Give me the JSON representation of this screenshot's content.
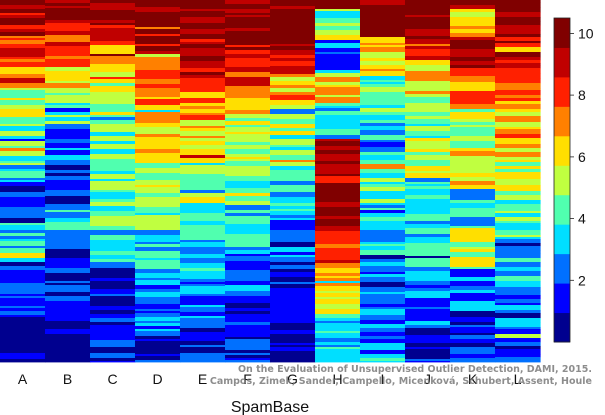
{
  "chart_data": {
    "type": "heatmap",
    "title": "",
    "xlabel": "SpamBase",
    "ylabel": "",
    "categories": [
      "A",
      "B",
      "C",
      "D",
      "E",
      "F",
      "G",
      "H",
      "I",
      "J",
      "K",
      "L"
    ],
    "colorbar": {
      "range": [
        0,
        10.5
      ],
      "ticks": [
        2,
        4,
        6,
        8,
        10
      ],
      "tick_labels": [
        "2",
        "4",
        "6",
        "8",
        "10"
      ],
      "colors": [
        "#00008f",
        "#0000ff",
        "#0070ff",
        "#00dfff",
        "#50ffaf",
        "#c0ff40",
        "#ffdf00",
        "#ff8000",
        "#ff2000",
        "#c00000",
        "#800000"
      ],
      "position": "right"
    },
    "columns": [
      {
        "name": "A",
        "segments": [
          [
            0.035,
            10
          ],
          [
            0.09,
            9
          ],
          [
            0.18,
            8
          ],
          [
            0.24,
            6
          ],
          [
            0.32,
            5
          ],
          [
            0.42,
            4
          ],
          [
            0.5,
            3
          ],
          [
            0.62,
            1
          ],
          [
            0.72,
            3
          ],
          [
            0.86,
            1
          ],
          [
            1,
            0
          ]
        ]
      },
      {
        "name": "B",
        "segments": [
          [
            0.035,
            10
          ],
          [
            0.09,
            9
          ],
          [
            0.18,
            8
          ],
          [
            0.24,
            6
          ],
          [
            0.34,
            4
          ],
          [
            0.46,
            2
          ],
          [
            0.56,
            1
          ],
          [
            0.68,
            3
          ],
          [
            0.82,
            1
          ],
          [
            1,
            0
          ]
        ]
      },
      {
        "name": "C",
        "segments": [
          [
            0.035,
            10
          ],
          [
            0.12,
            9
          ],
          [
            0.18,
            7
          ],
          [
            0.26,
            6
          ],
          [
            0.36,
            5
          ],
          [
            0.5,
            4
          ],
          [
            0.62,
            4
          ],
          [
            0.74,
            3
          ],
          [
            0.88,
            1
          ],
          [
            1,
            1
          ]
        ]
      },
      {
        "name": "D",
        "segments": [
          [
            0.08,
            10
          ],
          [
            0.14,
            9
          ],
          [
            0.2,
            8
          ],
          [
            0.3,
            7
          ],
          [
            0.42,
            6
          ],
          [
            0.52,
            5
          ],
          [
            0.64,
            4
          ],
          [
            0.76,
            3
          ],
          [
            0.9,
            2
          ],
          [
            1,
            1
          ]
        ]
      },
      {
        "name": "E",
        "segments": [
          [
            0.08,
            10
          ],
          [
            0.2,
            9
          ],
          [
            0.24,
            8
          ],
          [
            0.32,
            7
          ],
          [
            0.44,
            6
          ],
          [
            0.56,
            5
          ],
          [
            0.66,
            4
          ],
          [
            0.78,
            3
          ],
          [
            0.9,
            2
          ],
          [
            1,
            1
          ]
        ]
      },
      {
        "name": "F",
        "segments": [
          [
            0.1,
            10
          ],
          [
            0.16,
            9
          ],
          [
            0.24,
            8
          ],
          [
            0.32,
            6
          ],
          [
            0.44,
            5
          ],
          [
            0.56,
            4
          ],
          [
            0.68,
            3
          ],
          [
            0.8,
            2
          ],
          [
            0.92,
            1
          ],
          [
            1,
            1
          ]
        ]
      },
      {
        "name": "G",
        "segments": [
          [
            0.14,
            10
          ],
          [
            0.2,
            8
          ],
          [
            0.28,
            6
          ],
          [
            0.38,
            5
          ],
          [
            0.48,
            4
          ],
          [
            0.58,
            3
          ],
          [
            0.72,
            2
          ],
          [
            0.86,
            1
          ],
          [
            1,
            0
          ]
        ]
      },
      {
        "name": "H",
        "segments": [
          [
            0.02,
            10
          ],
          [
            0.1,
            4
          ],
          [
            0.2,
            2
          ],
          [
            0.28,
            6
          ],
          [
            0.38,
            3
          ],
          [
            0.5,
            9
          ],
          [
            0.62,
            10
          ],
          [
            0.74,
            8
          ],
          [
            0.86,
            6
          ],
          [
            1,
            3
          ]
        ]
      },
      {
        "name": "I",
        "segments": [
          [
            0.1,
            10
          ],
          [
            0.2,
            6
          ],
          [
            0.3,
            4
          ],
          [
            0.44,
            3
          ],
          [
            0.56,
            4
          ],
          [
            0.7,
            3
          ],
          [
            0.84,
            2
          ],
          [
            1,
            2
          ]
        ]
      },
      {
        "name": "J",
        "segments": [
          [
            0.1,
            10
          ],
          [
            0.16,
            8
          ],
          [
            0.26,
            6
          ],
          [
            0.38,
            4
          ],
          [
            0.5,
            5
          ],
          [
            0.62,
            3
          ],
          [
            0.76,
            3
          ],
          [
            0.9,
            2
          ],
          [
            1,
            1
          ]
        ]
      },
      {
        "name": "K",
        "segments": [
          [
            0.02,
            10
          ],
          [
            0.1,
            6
          ],
          [
            0.2,
            9
          ],
          [
            0.3,
            7
          ],
          [
            0.4,
            5
          ],
          [
            0.52,
            6
          ],
          [
            0.62,
            3
          ],
          [
            0.74,
            5
          ],
          [
            0.86,
            2
          ],
          [
            1,
            1
          ]
        ]
      },
      {
        "name": "L",
        "segments": [
          [
            0.1,
            10
          ],
          [
            0.2,
            9
          ],
          [
            0.3,
            7
          ],
          [
            0.42,
            6
          ],
          [
            0.54,
            5
          ],
          [
            0.66,
            4
          ],
          [
            0.8,
            3
          ],
          [
            0.92,
            2
          ],
          [
            1,
            2
          ]
        ]
      }
    ]
  },
  "watermark": {
    "line1": "On the Evaluation of Unsupervised Outlier Detection, DAMI, 2015.",
    "line2": "Campos, Zimek, Sander, Campello, Micenková, Schubert, Assent, Houle"
  }
}
